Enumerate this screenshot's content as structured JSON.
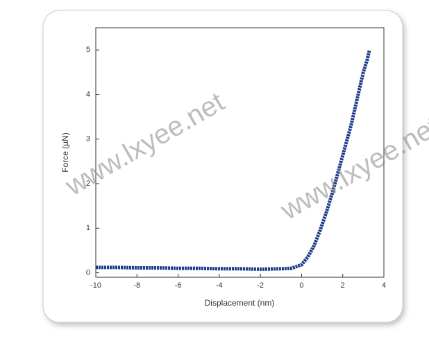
{
  "chart_data": {
    "type": "line",
    "x_label": "Displacement (nm)",
    "y_label": "Force (µN)",
    "watermark": "www.lxyee.net",
    "x": [
      -10,
      -9,
      -8,
      -7,
      -6,
      -5,
      -4,
      -3,
      -2,
      -1,
      -0.5,
      0,
      0.3,
      0.6,
      0.9,
      1.2,
      1.5,
      1.8,
      2.1,
      2.4,
      2.7,
      3.0,
      3.2,
      3.3
    ],
    "series": [
      {
        "color": "#1f3a8a",
        "values": [
          0.12,
          0.12,
          0.11,
          0.11,
          0.1,
          0.1,
          0.09,
          0.09,
          0.08,
          0.09,
          0.1,
          0.18,
          0.35,
          0.6,
          0.95,
          1.35,
          1.8,
          2.3,
          2.8,
          3.3,
          3.9,
          4.5,
          4.8,
          5.0
        ]
      }
    ],
    "xlim": [
      -10,
      4
    ],
    "xticks": [
      -10,
      -8,
      -6,
      -4,
      -2,
      0,
      2,
      4
    ],
    "ylim": [
      -0.1,
      5.5
    ],
    "yticks": [
      0,
      1,
      2,
      3,
      4,
      5
    ]
  }
}
